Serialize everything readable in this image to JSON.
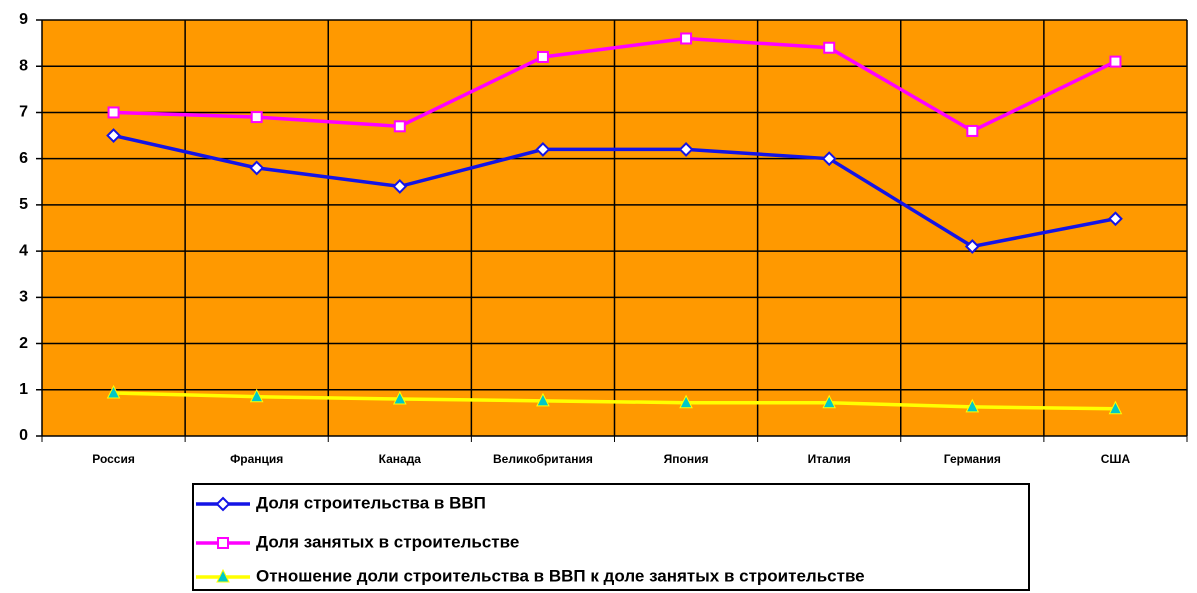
{
  "chart_data": {
    "type": "line",
    "categories": [
      "Россия",
      "Франция",
      "Канада",
      "Великобритания",
      "Япония",
      "Италия",
      "Германия",
      "США"
    ],
    "series": [
      {
        "name": "Доля строительства в ВВП",
        "color": "#1414e6",
        "marker": "diamond",
        "values": [
          6.5,
          5.8,
          5.4,
          6.2,
          6.2,
          6.0,
          4.1,
          4.7
        ]
      },
      {
        "name": "Доля занятых в строительстве",
        "color": "#ff00ff",
        "marker": "square",
        "values": [
          7.0,
          6.9,
          6.7,
          8.2,
          8.6,
          8.4,
          6.6,
          8.1
        ]
      },
      {
        "name": "Отношение доли строительства в ВВП к доле занятых в строительстве",
        "color": "#ffff00",
        "marker": "triangle",
        "values": [
          0.93,
          0.85,
          0.8,
          0.76,
          0.72,
          0.72,
          0.63,
          0.59
        ]
      }
    ],
    "ylim": [
      0,
      9
    ],
    "yticks": [
      0,
      1,
      2,
      3,
      4,
      5,
      6,
      7,
      8,
      9
    ],
    "grid": true,
    "background": "#ff9900",
    "legend": "bottom"
  }
}
